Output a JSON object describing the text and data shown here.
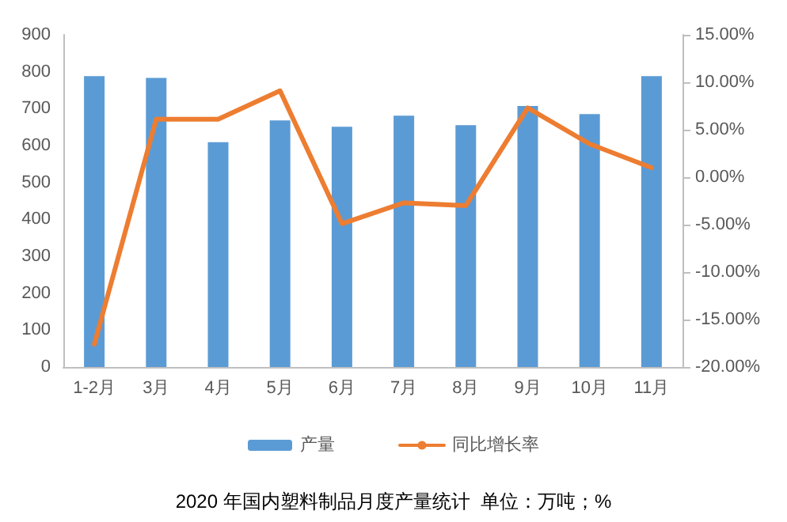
{
  "chart_data": {
    "type": "bar",
    "title": "2020 年国内塑料制品月度产量统计  单位：万吨；%",
    "categories": [
      "1-2月",
      "3月",
      "4月",
      "5月",
      "6月",
      "7月",
      "8月",
      "9月",
      "10月",
      "11月"
    ],
    "series": [
      {
        "name": "产量",
        "color": "#5b9bd5",
        "values": [
          788,
          783,
          609,
          668,
          651,
          681,
          655,
          707,
          685,
          788
        ]
      },
      {
        "name": "同比增长率",
        "type": "line",
        "axis": "y2",
        "color": "#ed7d31",
        "values": [
          -17.6,
          6.1,
          6.1,
          9.1,
          -4.9,
          -2.7,
          -3.0,
          7.3,
          3.5,
          1.0
        ]
      }
    ],
    "ylim": [
      0,
      900
    ],
    "yticks": [
      0,
      100,
      200,
      300,
      400,
      500,
      600,
      700,
      800,
      900
    ],
    "y2lim": [
      -20,
      15
    ],
    "y2ticks": [
      {
        "value": -20,
        "label": "-20.00%"
      },
      {
        "value": -15,
        "label": "-15.00%"
      },
      {
        "value": -10,
        "label": "-10.00%"
      },
      {
        "value": -5,
        "label": "-5.00%"
      },
      {
        "value": 0,
        "label": "0.00%"
      },
      {
        "value": 5,
        "label": "5.00%"
      },
      {
        "value": 10,
        "label": "10.00%"
      },
      {
        "value": 15,
        "label": "15.00%"
      }
    ],
    "grid": false,
    "legend": "bottom",
    "marker": "none",
    "line_style": "solid"
  }
}
